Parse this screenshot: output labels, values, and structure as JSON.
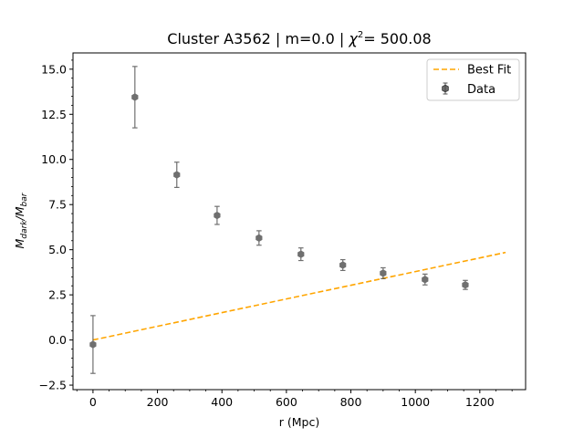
{
  "chart_data": {
    "type": "scatter",
    "title_main": "Cluster A3562 | m=0.0 | ",
    "title_chi": "χ",
    "title_chi_sup": "2",
    "title_rest": "= 500.08",
    "xlabel": "r (Mpc)",
    "ylabel_M": "M",
    "ylabel_sub1": "dark",
    "ylabel_slash": "/M",
    "ylabel_sub2": "bar",
    "xlim": [
      -62,
      1342
    ],
    "ylim": [
      -2.75,
      15.9
    ],
    "xticks": [
      0,
      200,
      400,
      600,
      800,
      1000,
      1200
    ],
    "xtick_labels": [
      "0",
      "200",
      "400",
      "600",
      "800",
      "1000",
      "1200"
    ],
    "yticks": [
      -2.5,
      0.0,
      2.5,
      5.0,
      7.5,
      10.0,
      12.5,
      15.0
    ],
    "ytick_labels": [
      "−2.5",
      "0.0",
      "2.5",
      "5.0",
      "7.5",
      "10.0",
      "12.5",
      "15.0"
    ],
    "series": [
      {
        "name": "Data",
        "kind": "errorbar",
        "color": "#404040",
        "x": [
          0,
          130,
          260,
          385,
          515,
          645,
          775,
          900,
          1030,
          1155
        ],
        "y": [
          -0.25,
          13.45,
          9.15,
          6.9,
          5.65,
          4.75,
          4.15,
          3.7,
          3.35,
          3.05
        ],
        "yerr": [
          1.6,
          1.7,
          0.7,
          0.5,
          0.4,
          0.35,
          0.3,
          0.3,
          0.3,
          0.25
        ]
      },
      {
        "name": "Best Fit",
        "kind": "line",
        "color": "#ffa500",
        "x": [
          0,
          1280
        ],
        "y": [
          0.0,
          4.85
        ]
      }
    ],
    "legend": {
      "position": "top-right",
      "entries": [
        "Best Fit",
        "Data"
      ]
    },
    "grid": false
  }
}
